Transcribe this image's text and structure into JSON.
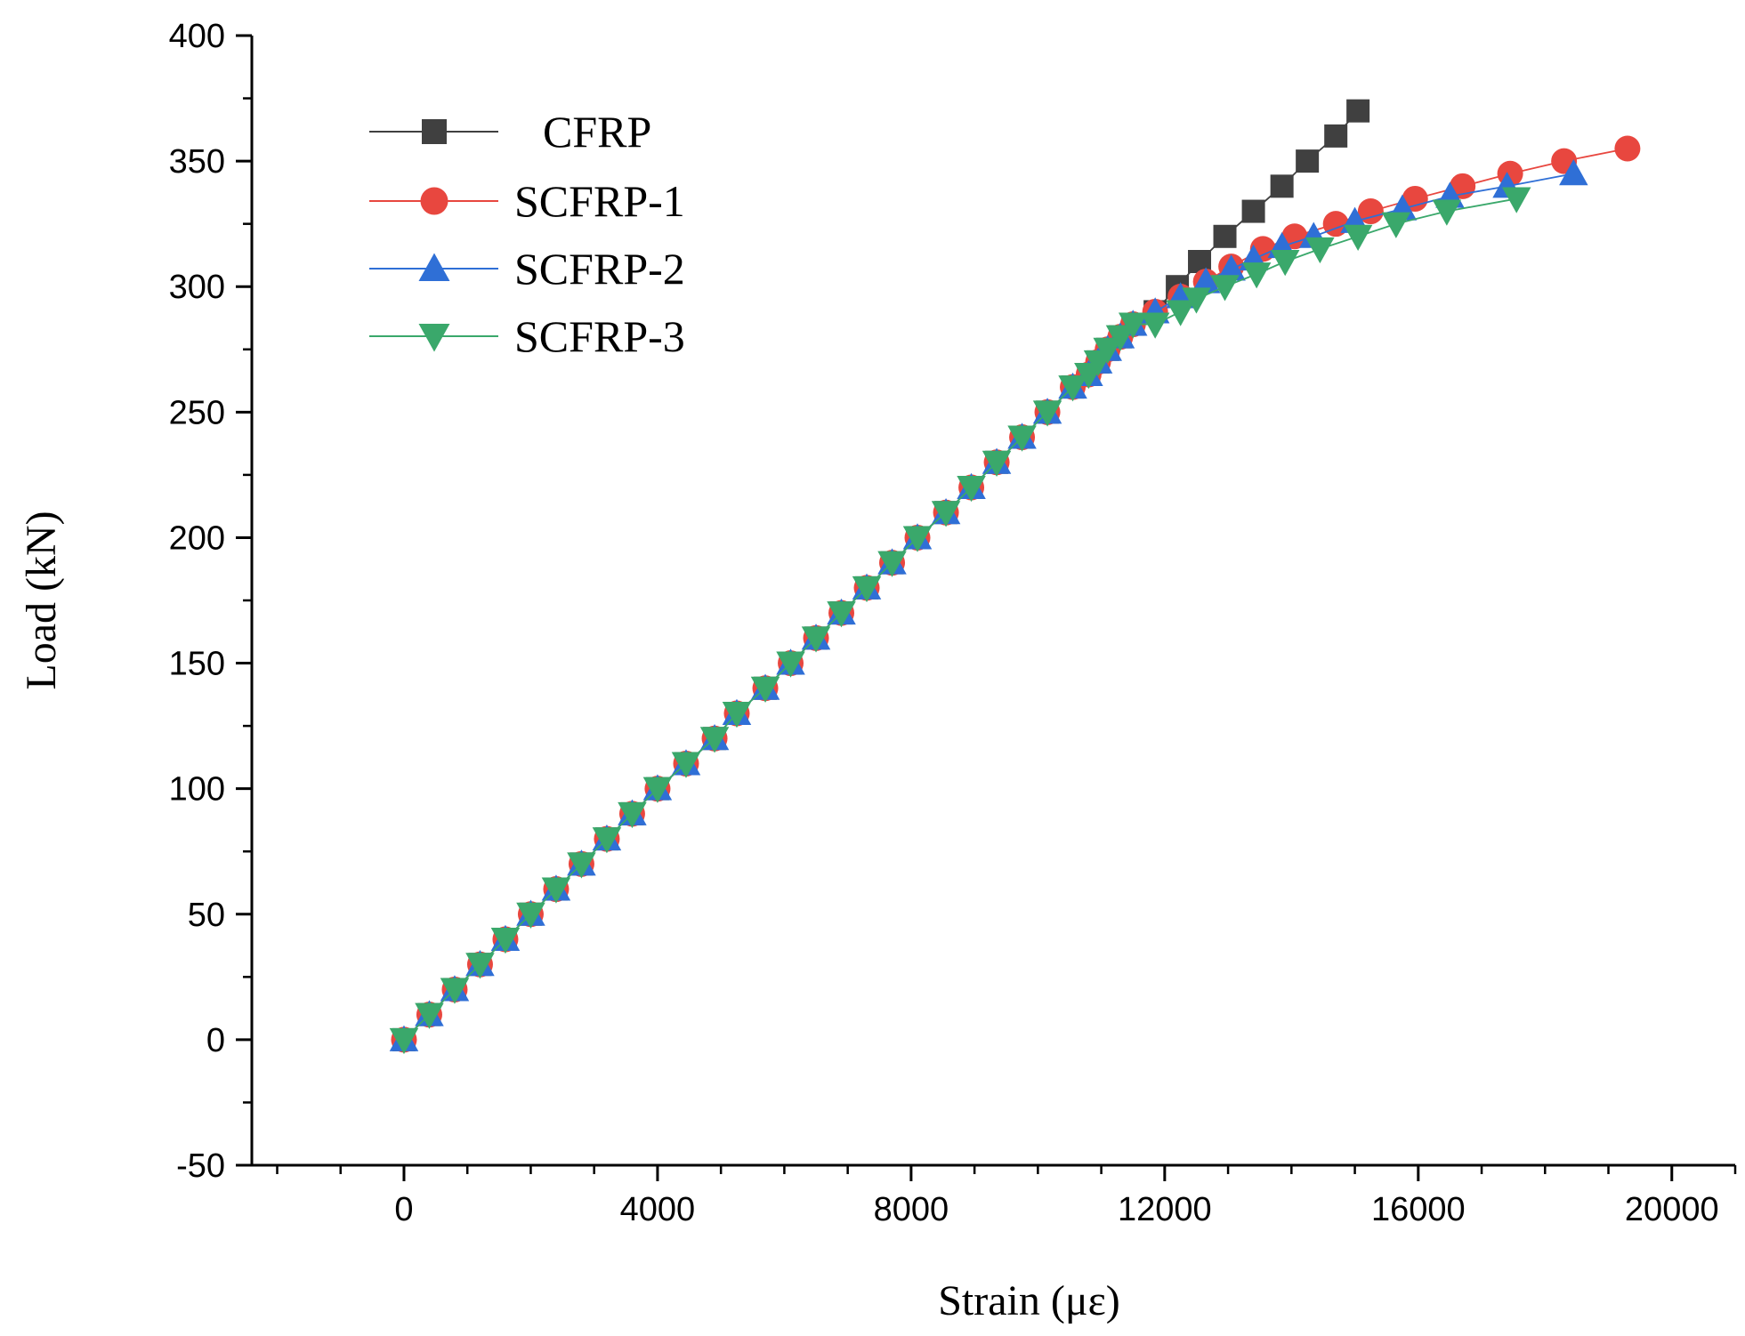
{
  "chart_data": {
    "type": "line",
    "title": "",
    "xlabel": "Strain (με)",
    "ylabel": "Load (kN)",
    "xlim": [
      -2400,
      21000
    ],
    "ylim": [
      -50,
      400
    ],
    "xticks": [
      0,
      4000,
      8000,
      12000,
      16000,
      20000
    ],
    "yticks": [
      -50,
      0,
      50,
      100,
      150,
      200,
      250,
      300,
      350,
      400
    ],
    "grid": false,
    "legend_position": "top-left",
    "series": [
      {
        "name": "CFRP",
        "color": "#404040",
        "marker": "square",
        "x": [
          0,
          400,
          800,
          1200,
          1600,
          2000,
          2400,
          2800,
          3200,
          3600,
          4000,
          4450,
          4900,
          5250,
          5700,
          6100,
          6500,
          6900,
          7300,
          7700,
          8100,
          8550,
          8950,
          9350,
          9750,
          10150,
          10550,
          10800,
          10950,
          11100,
          11300,
          11500,
          11850,
          12200,
          12550,
          12950,
          13400,
          13850,
          14250,
          14700,
          15050
        ],
        "y": [
          0,
          10,
          20,
          30,
          40,
          50,
          60,
          70,
          80,
          90,
          100,
          110,
          120,
          130,
          140,
          150,
          160,
          170,
          180,
          190,
          200,
          210,
          220,
          230,
          240,
          250,
          260,
          265,
          270,
          275,
          280,
          285,
          290,
          300,
          310,
          320,
          330,
          340,
          350,
          360,
          370
        ]
      },
      {
        "name": "SCFRP-1",
        "color": "#e8473f",
        "marker": "circle",
        "x": [
          0,
          400,
          800,
          1200,
          1600,
          2000,
          2400,
          2800,
          3200,
          3600,
          4000,
          4450,
          4900,
          5250,
          5700,
          6100,
          6500,
          6900,
          7300,
          7700,
          8100,
          8550,
          8950,
          9350,
          9750,
          10150,
          10550,
          10800,
          10950,
          11100,
          11300,
          11500,
          11850,
          12250,
          12650,
          13050,
          13550,
          14050,
          14700,
          15250,
          15950,
          16700,
          17450,
          18300,
          19300
        ],
        "y": [
          0,
          10,
          20,
          30,
          40,
          50,
          60,
          70,
          80,
          90,
          100,
          110,
          120,
          130,
          140,
          150,
          160,
          170,
          180,
          190,
          200,
          210,
          220,
          230,
          240,
          250,
          260,
          265,
          270,
          275,
          280,
          285,
          290,
          296,
          302,
          308,
          315,
          320,
          325,
          330,
          335,
          340,
          345,
          350,
          355
        ]
      },
      {
        "name": "SCFRP-2",
        "color": "#2f6fd6",
        "marker": "triangle-up",
        "x": [
          0,
          400,
          800,
          1200,
          1600,
          2000,
          2400,
          2800,
          3200,
          3600,
          4000,
          4450,
          4900,
          5250,
          5700,
          6100,
          6500,
          6900,
          7300,
          7700,
          8100,
          8550,
          8950,
          9350,
          9750,
          10150,
          10550,
          10800,
          10950,
          11100,
          11300,
          11500,
          11850,
          12250,
          12650,
          13050,
          13400,
          13850,
          14350,
          15000,
          15750,
          16500,
          17400,
          18450
        ],
        "y": [
          0,
          10,
          20,
          30,
          40,
          50,
          60,
          70,
          80,
          90,
          100,
          110,
          120,
          130,
          140,
          150,
          160,
          170,
          180,
          190,
          200,
          210,
          220,
          230,
          240,
          250,
          260,
          265,
          270,
          275,
          280,
          285,
          290,
          296,
          302,
          307,
          311,
          316,
          320,
          326,
          331,
          336,
          340,
          345
        ]
      },
      {
        "name": "SCFRP-3",
        "color": "#3aa86b",
        "marker": "triangle-down",
        "x": [
          0,
          400,
          800,
          1200,
          1600,
          2000,
          2400,
          2800,
          3200,
          3600,
          4000,
          4450,
          4900,
          5250,
          5700,
          6100,
          6500,
          6900,
          7300,
          7700,
          8100,
          8550,
          8950,
          9350,
          9750,
          10150,
          10550,
          10800,
          10950,
          11100,
          11300,
          11500,
          11850,
          12250,
          12500,
          12950,
          13450,
          13900,
          14450,
          15050,
          15650,
          16450,
          17550
        ],
        "y": [
          0,
          10,
          20,
          30,
          40,
          50,
          60,
          70,
          80,
          90,
          100,
          110,
          120,
          130,
          140,
          150,
          160,
          170,
          180,
          190,
          200,
          210,
          220,
          230,
          240,
          250,
          260,
          265,
          270,
          275,
          280,
          285,
          285,
          290,
          295,
          300,
          305,
          310,
          315,
          320,
          325,
          330,
          335
        ]
      }
    ]
  }
}
